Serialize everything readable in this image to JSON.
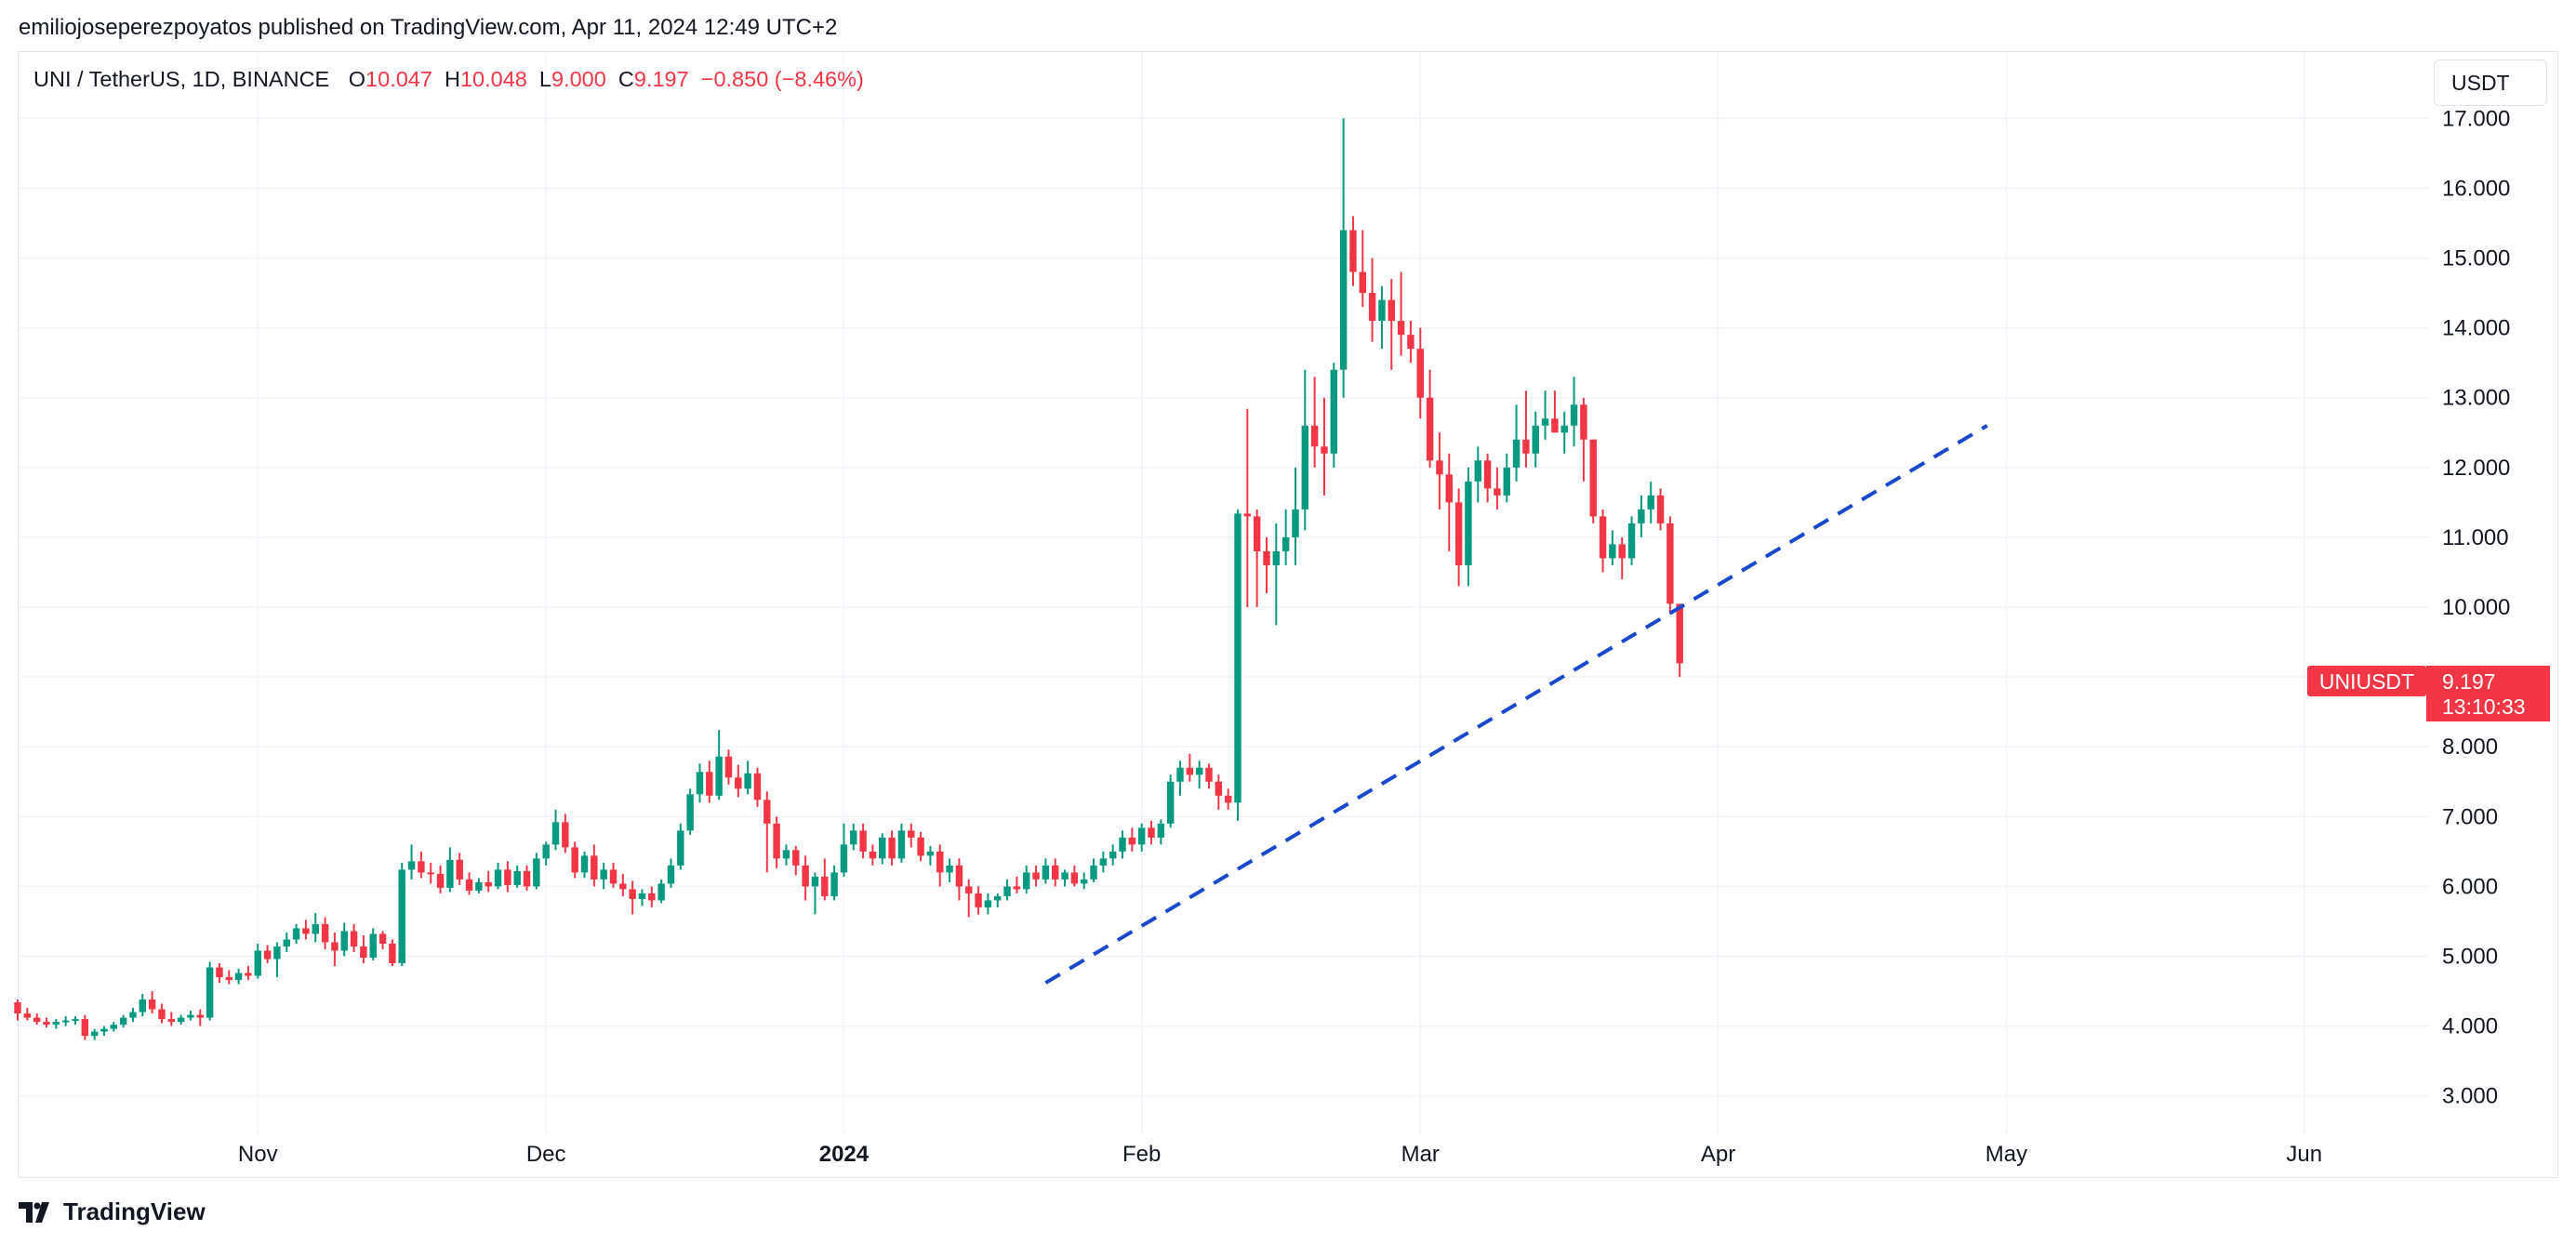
{
  "header": {
    "attribution": "emiliojoseperezpoyatos published on TradingView.com, Apr 11, 2024 12:49 UTC+2"
  },
  "legend": {
    "symbol": "UNI / TetherUS, 1D, BINANCE",
    "open_label": "O",
    "open": "10.047",
    "high_label": "H",
    "high": "10.048",
    "low_label": "L",
    "low": "9.000",
    "close_label": "C",
    "close": "9.197",
    "change": "−0.850 (−8.46%)"
  },
  "currency_button": {
    "label": "USDT"
  },
  "price_tag": {
    "symbol": "UNIUSDT",
    "price": "9.197",
    "countdown": "13:10:33"
  },
  "footer": {
    "brand": "TradingView"
  },
  "colors": {
    "up": "#089981",
    "down": "#f23645",
    "trendline": "#1848cc",
    "grid": "#f0f3fa",
    "axis_text": "#131722"
  },
  "chart_data": {
    "type": "candlestick",
    "symbol": "UNIUSDT",
    "timeframe": "1D",
    "exchange": "BINANCE",
    "y_ticks": [
      3,
      4,
      5,
      6,
      7,
      8,
      9,
      10,
      11,
      12,
      13,
      14,
      15,
      16,
      17
    ],
    "y_tick_labels": [
      "3.000",
      "4.000",
      "5.000",
      "6.000",
      "7.000",
      "8.000",
      "9.000",
      "10.000",
      "11.000",
      "12.000",
      "13.000",
      "14.000",
      "15.000",
      "16.000",
      "17.000"
    ],
    "ylim": [
      2.45,
      17.95
    ],
    "x_labels": [
      {
        "label": "Nov",
        "date": "2023-11-01",
        "bold": false
      },
      {
        "label": "Dec",
        "date": "2023-12-01",
        "bold": false
      },
      {
        "label": "2024",
        "date": "2024-01-01",
        "bold": true
      },
      {
        "label": "Feb",
        "date": "2024-02-01",
        "bold": false
      },
      {
        "label": "Mar",
        "date": "2024-03-01",
        "bold": false
      },
      {
        "label": "Apr",
        "date": "2024-04-01",
        "bold": false
      },
      {
        "label": "May",
        "date": "2024-05-01",
        "bold": false
      },
      {
        "label": "Jun",
        "date": "2024-06-01",
        "bold": false
      }
    ],
    "xlim": [
      "2023-10-07",
      "2024-06-14"
    ],
    "start_date": "2023-10-07",
    "trendline": {
      "x": [
        "2024-01-22",
        "2024-04-29"
      ],
      "y": [
        4.62,
        12.6
      ],
      "style": "dashed"
    },
    "candles": [
      [
        4.34,
        4.38,
        4.08,
        4.18
      ],
      [
        4.18,
        4.26,
        4.08,
        4.12
      ],
      [
        4.12,
        4.18,
        4.02,
        4.06
      ],
      [
        4.06,
        4.12,
        3.98,
        4.02
      ],
      [
        4.02,
        4.1,
        3.96,
        4.06
      ],
      [
        4.06,
        4.14,
        4.0,
        4.08
      ],
      [
        4.08,
        4.14,
        4.02,
        4.1
      ],
      [
        4.1,
        4.16,
        3.8,
        3.86
      ],
      [
        3.86,
        3.96,
        3.8,
        3.92
      ],
      [
        3.92,
        4.0,
        3.86,
        3.96
      ],
      [
        3.96,
        4.06,
        3.92,
        4.02
      ],
      [
        4.02,
        4.16,
        3.98,
        4.12
      ],
      [
        4.12,
        4.26,
        4.06,
        4.2
      ],
      [
        4.2,
        4.46,
        4.14,
        4.38
      ],
      [
        4.38,
        4.5,
        4.18,
        4.24
      ],
      [
        4.24,
        4.32,
        4.04,
        4.1
      ],
      [
        4.1,
        4.2,
        4.0,
        4.06
      ],
      [
        4.06,
        4.16,
        4.02,
        4.12
      ],
      [
        4.12,
        4.22,
        4.08,
        4.16
      ],
      [
        4.16,
        4.24,
        4.0,
        4.12
      ],
      [
        4.12,
        4.92,
        4.08,
        4.84
      ],
      [
        4.84,
        4.9,
        4.62,
        4.7
      ],
      [
        4.7,
        4.8,
        4.6,
        4.66
      ],
      [
        4.66,
        4.82,
        4.6,
        4.76
      ],
      [
        4.76,
        4.86,
        4.66,
        4.72
      ],
      [
        4.72,
        5.18,
        4.68,
        5.08
      ],
      [
        5.08,
        5.16,
        4.9,
        4.96
      ],
      [
        4.96,
        5.2,
        4.7,
        5.14
      ],
      [
        5.14,
        5.34,
        5.06,
        5.24
      ],
      [
        5.24,
        5.46,
        5.18,
        5.4
      ],
      [
        5.4,
        5.52,
        5.24,
        5.32
      ],
      [
        5.32,
        5.62,
        5.2,
        5.46
      ],
      [
        5.46,
        5.56,
        5.1,
        5.2
      ],
      [
        5.2,
        5.34,
        4.86,
        5.08
      ],
      [
        5.08,
        5.48,
        5.0,
        5.36
      ],
      [
        5.36,
        5.46,
        5.06,
        5.14
      ],
      [
        5.14,
        5.3,
        4.9,
        4.98
      ],
      [
        4.98,
        5.4,
        4.94,
        5.32
      ],
      [
        5.32,
        5.36,
        5.1,
        5.18
      ],
      [
        5.18,
        5.24,
        4.86,
        4.9
      ],
      [
        4.9,
        6.34,
        4.86,
        6.24
      ],
      [
        6.24,
        6.6,
        6.1,
        6.36
      ],
      [
        6.36,
        6.5,
        6.12,
        6.2
      ],
      [
        6.2,
        6.34,
        6.04,
        6.18
      ],
      [
        6.18,
        6.3,
        5.9,
        5.98
      ],
      [
        5.98,
        6.56,
        5.92,
        6.38
      ],
      [
        6.38,
        6.48,
        6.02,
        6.1
      ],
      [
        6.1,
        6.2,
        5.88,
        5.94
      ],
      [
        5.94,
        6.12,
        5.9,
        6.06
      ],
      [
        6.06,
        6.22,
        5.92,
        6.0
      ],
      [
        6.0,
        6.34,
        5.96,
        6.24
      ],
      [
        6.24,
        6.36,
        5.92,
        6.02
      ],
      [
        6.02,
        6.3,
        5.98,
        6.22
      ],
      [
        6.22,
        6.3,
        5.94,
        6.0
      ],
      [
        6.0,
        6.48,
        5.96,
        6.4
      ],
      [
        6.4,
        6.64,
        6.3,
        6.6
      ],
      [
        6.6,
        7.1,
        6.52,
        6.92
      ],
      [
        6.92,
        7.04,
        6.48,
        6.56
      ],
      [
        6.56,
        6.64,
        6.12,
        6.2
      ],
      [
        6.2,
        6.5,
        6.12,
        6.44
      ],
      [
        6.44,
        6.6,
        6.0,
        6.1
      ],
      [
        6.1,
        6.34,
        5.96,
        6.24
      ],
      [
        6.24,
        6.34,
        5.98,
        6.04
      ],
      [
        6.04,
        6.18,
        5.86,
        5.96
      ],
      [
        5.96,
        6.08,
        5.6,
        5.82
      ],
      [
        5.82,
        5.96,
        5.72,
        5.9
      ],
      [
        5.9,
        6.0,
        5.7,
        5.8
      ],
      [
        5.8,
        6.1,
        5.76,
        6.04
      ],
      [
        6.04,
        6.4,
        5.98,
        6.3
      ],
      [
        6.3,
        6.9,
        6.24,
        6.8
      ],
      [
        6.8,
        7.4,
        6.74,
        7.32
      ],
      [
        7.32,
        7.76,
        7.2,
        7.64
      ],
      [
        7.64,
        7.8,
        7.2,
        7.3
      ],
      [
        7.3,
        8.24,
        7.24,
        7.86
      ],
      [
        7.86,
        7.96,
        7.46,
        7.56
      ],
      [
        7.56,
        7.74,
        7.28,
        7.4
      ],
      [
        7.4,
        7.8,
        7.32,
        7.62
      ],
      [
        7.62,
        7.7,
        7.14,
        7.24
      ],
      [
        7.24,
        7.36,
        6.2,
        6.9
      ],
      [
        6.9,
        7.0,
        6.26,
        6.4
      ],
      [
        6.4,
        6.6,
        6.3,
        6.52
      ],
      [
        6.52,
        6.58,
        6.16,
        6.3
      ],
      [
        6.3,
        6.44,
        5.8,
        6.0
      ],
      [
        6.0,
        6.2,
        5.6,
        6.14
      ],
      [
        6.14,
        6.4,
        5.8,
        5.86
      ],
      [
        5.86,
        6.3,
        5.8,
        6.2
      ],
      [
        6.2,
        6.9,
        6.14,
        6.6
      ],
      [
        6.6,
        6.9,
        6.52,
        6.8
      ],
      [
        6.8,
        6.9,
        6.4,
        6.5
      ],
      [
        6.5,
        6.6,
        6.3,
        6.4
      ],
      [
        6.4,
        6.76,
        6.32,
        6.7
      ],
      [
        6.7,
        6.8,
        6.3,
        6.4
      ],
      [
        6.4,
        6.9,
        6.34,
        6.8
      ],
      [
        6.8,
        6.9,
        6.56,
        6.7
      ],
      [
        6.7,
        6.78,
        6.36,
        6.44
      ],
      [
        6.44,
        6.58,
        6.3,
        6.5
      ],
      [
        6.5,
        6.6,
        6.0,
        6.2
      ],
      [
        6.2,
        6.4,
        6.06,
        6.3
      ],
      [
        6.3,
        6.4,
        5.8,
        6.0
      ],
      [
        6.0,
        6.1,
        5.56,
        5.9
      ],
      [
        5.9,
        6.0,
        5.6,
        5.7
      ],
      [
        5.7,
        5.9,
        5.6,
        5.8
      ],
      [
        5.8,
        5.9,
        5.7,
        5.86
      ],
      [
        5.86,
        6.1,
        5.8,
        6.0
      ],
      [
        6.0,
        6.14,
        5.9,
        5.96
      ],
      [
        5.96,
        6.3,
        5.9,
        6.2
      ],
      [
        6.2,
        6.3,
        6.0,
        6.1
      ],
      [
        6.1,
        6.4,
        6.04,
        6.3
      ],
      [
        6.3,
        6.4,
        6.0,
        6.1
      ],
      [
        6.1,
        6.24,
        6.0,
        6.2
      ],
      [
        6.2,
        6.3,
        6.0,
        6.04
      ],
      [
        6.04,
        6.2,
        5.96,
        6.1
      ],
      [
        6.1,
        6.4,
        6.06,
        6.3
      ],
      [
        6.3,
        6.5,
        6.2,
        6.4
      ],
      [
        6.4,
        6.6,
        6.3,
        6.5
      ],
      [
        6.5,
        6.8,
        6.4,
        6.7
      ],
      [
        6.7,
        6.84,
        6.5,
        6.6
      ],
      [
        6.6,
        6.9,
        6.5,
        6.84
      ],
      [
        6.84,
        6.94,
        6.6,
        6.7
      ],
      [
        6.7,
        6.96,
        6.6,
        6.9
      ],
      [
        6.9,
        7.6,
        6.84,
        7.5
      ],
      [
        7.5,
        7.8,
        7.3,
        7.7
      ],
      [
        7.7,
        7.9,
        7.5,
        7.6
      ],
      [
        7.6,
        7.8,
        7.4,
        7.7
      ],
      [
        7.7,
        7.76,
        7.4,
        7.5
      ],
      [
        7.5,
        7.6,
        7.1,
        7.3
      ],
      [
        7.3,
        7.4,
        7.1,
        7.2
      ],
      [
        7.2,
        11.4,
        6.94,
        11.34
      ],
      [
        11.34,
        12.84,
        10.0,
        11.3
      ],
      [
        11.3,
        11.4,
        10.0,
        10.8
      ],
      [
        10.8,
        11.0,
        10.2,
        10.6
      ],
      [
        10.6,
        11.2,
        9.74,
        10.8
      ],
      [
        10.8,
        11.4,
        10.6,
        11.0
      ],
      [
        11.0,
        12.0,
        10.6,
        11.4
      ],
      [
        11.4,
        13.4,
        11.1,
        12.6
      ],
      [
        12.6,
        13.3,
        12.0,
        12.3
      ],
      [
        12.3,
        13.0,
        11.6,
        12.2
      ],
      [
        12.2,
        13.5,
        12.0,
        13.4
      ],
      [
        13.4,
        17.0,
        13.0,
        15.4
      ],
      [
        15.4,
        15.6,
        14.6,
        14.8
      ],
      [
        14.8,
        15.4,
        14.3,
        14.5
      ],
      [
        14.5,
        15.0,
        13.8,
        14.1
      ],
      [
        14.1,
        14.6,
        13.7,
        14.4
      ],
      [
        14.4,
        14.7,
        13.4,
        14.1
      ],
      [
        14.1,
        14.8,
        13.6,
        13.9
      ],
      [
        13.9,
        14.1,
        13.5,
        13.7
      ],
      [
        13.7,
        14.0,
        12.7,
        13.0
      ],
      [
        13.0,
        13.4,
        12.0,
        12.1
      ],
      [
        12.1,
        12.5,
        11.4,
        11.9
      ],
      [
        11.9,
        12.2,
        10.8,
        11.5
      ],
      [
        11.5,
        11.7,
        10.3,
        10.6
      ],
      [
        10.6,
        12.0,
        10.3,
        11.8
      ],
      [
        11.8,
        12.3,
        11.5,
        12.1
      ],
      [
        12.1,
        12.2,
        11.5,
        11.7
      ],
      [
        11.7,
        12.0,
        11.4,
        11.6
      ],
      [
        11.6,
        12.2,
        11.5,
        12.0
      ],
      [
        12.0,
        12.9,
        11.8,
        12.4
      ],
      [
        12.4,
        13.1,
        12.0,
        12.2
      ],
      [
        12.2,
        12.8,
        12.0,
        12.6
      ],
      [
        12.6,
        13.1,
        12.4,
        12.7
      ],
      [
        12.7,
        13.1,
        12.5,
        12.5
      ],
      [
        12.5,
        12.8,
        12.2,
        12.6
      ],
      [
        12.6,
        13.3,
        12.3,
        12.9
      ],
      [
        12.9,
        13.0,
        11.8,
        12.4
      ],
      [
        12.4,
        12.4,
        11.2,
        11.3
      ],
      [
        11.3,
        11.4,
        10.5,
        10.7
      ],
      [
        10.7,
        11.1,
        10.6,
        10.9
      ],
      [
        10.9,
        11.0,
        10.4,
        10.7
      ],
      [
        10.7,
        11.3,
        10.6,
        11.2
      ],
      [
        11.2,
        11.6,
        11.0,
        11.4
      ],
      [
        11.4,
        11.8,
        11.2,
        11.6
      ],
      [
        11.6,
        11.7,
        11.1,
        11.2
      ],
      [
        11.2,
        11.3,
        9.9,
        10.05
      ],
      [
        10.047,
        10.048,
        9.0,
        9.197
      ]
    ]
  }
}
